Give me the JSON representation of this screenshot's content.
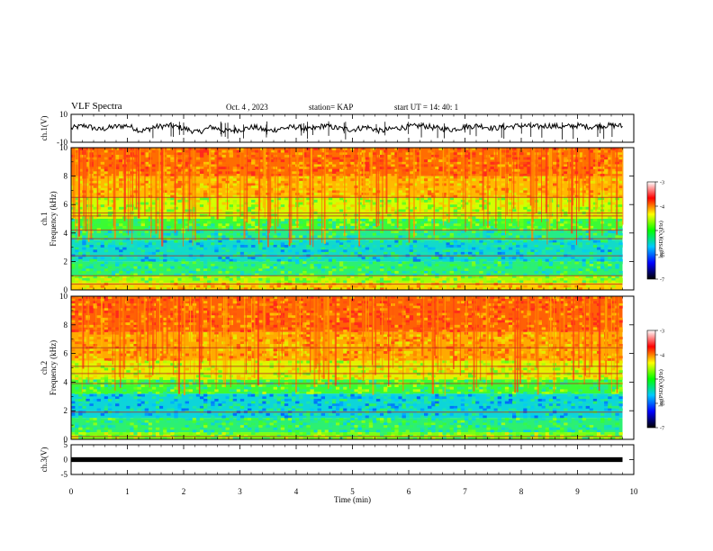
{
  "header": {
    "title": "VLF Spectra",
    "date": "Oct. 4 , 2023",
    "station": "station= KAP",
    "start": "start UT =  14: 40: 1"
  },
  "colors": {
    "spectrum_stops": [
      "#1a0a80",
      "#0050ff",
      "#00c8ff",
      "#20e8a0",
      "#40ff20",
      "#d8ff00",
      "#ffd000",
      "#ff7000",
      "#ff2020"
    ],
    "colorbar_stops": [
      "#000000",
      "#0000ff",
      "#00c8ff",
      "#00ff00",
      "#ffff00",
      "#ff0000",
      "#ffffff"
    ]
  },
  "chart_data": [
    {
      "type": "line",
      "name": "ch1-waveform",
      "ylabel": "ch.1(V)",
      "yticks": [
        "10",
        "-10"
      ],
      "ylim": [
        -10,
        10
      ],
      "x": [
        0,
        0.25,
        0.5,
        0.75,
        1,
        1.25,
        1.5,
        1.75,
        2,
        2.25,
        2.5,
        2.75,
        3,
        3.25,
        3.5,
        3.75,
        4,
        4.25,
        4.5,
        4.75,
        5,
        5.25,
        5.5,
        5.75,
        6,
        6.25,
        6.5,
        6.75,
        7,
        7.25,
        7.5,
        7.75,
        8,
        8.25,
        8.5,
        8.75,
        9,
        9.25,
        9.5,
        9.75,
        9.8
      ],
      "y": [
        0,
        2,
        -1,
        1,
        2,
        -2,
        1,
        2,
        0,
        -3,
        1,
        -2,
        -1,
        1,
        -2,
        0,
        1,
        -1,
        2,
        0,
        -1,
        1,
        -2,
        0,
        1,
        2,
        0,
        -1,
        1,
        2,
        0,
        1,
        2,
        1,
        2,
        1,
        2,
        1,
        2,
        2,
        1
      ]
    },
    {
      "type": "heatmap",
      "name": "ch1-spectrogram",
      "ylabel": "ch.1 Frequency (kHz)",
      "yticks": [
        "0",
        "2",
        "4",
        "6",
        "8",
        "10"
      ],
      "ylim": [
        0,
        10
      ],
      "colorbar": {
        "label": "log(PSD)(V²/Hz)",
        "ticks": [
          "-3",
          "-4",
          "-5",
          "-6",
          "-7"
        ],
        "range": [
          -7,
          -3
        ]
      },
      "band_levels": [
        {
          "f_from": 0.0,
          "f_to": 0.5,
          "level": 0.75
        },
        {
          "f_from": 0.5,
          "f_to": 1.0,
          "level": 0.58
        },
        {
          "f_from": 1.0,
          "f_to": 2.0,
          "level": 0.42
        },
        {
          "f_from": 2.0,
          "f_to": 3.5,
          "level": 0.32
        },
        {
          "f_from": 3.5,
          "f_to": 4.2,
          "level": 0.4
        },
        {
          "f_from": 4.2,
          "f_to": 5.0,
          "level": 0.48
        },
        {
          "f_from": 5.0,
          "f_to": 6.5,
          "level": 0.62
        },
        {
          "f_from": 6.5,
          "f_to": 8.0,
          "level": 0.78
        },
        {
          "f_from": 8.0,
          "f_to": 10.0,
          "level": 0.88
        }
      ],
      "lines_khz": [
        0.4,
        1.0,
        2.4,
        3.6,
        4.2,
        5.2,
        5.4,
        6.5
      ]
    },
    {
      "type": "heatmap",
      "name": "ch2-spectrogram",
      "ylabel": "ch.2 Frequency (kHz)",
      "yticks": [
        "0",
        "2",
        "4",
        "6",
        "8",
        "10"
      ],
      "ylim": [
        0,
        10
      ],
      "colorbar": {
        "label": "log(PSD)(V²/Hz)",
        "ticks": [
          "-3",
          "-4",
          "-5",
          "-6",
          "-7"
        ],
        "range": [
          -7,
          -3
        ]
      },
      "band_levels": [
        {
          "f_from": 0.0,
          "f_to": 0.5,
          "level": 0.55
        },
        {
          "f_from": 0.5,
          "f_to": 1.5,
          "level": 0.42
        },
        {
          "f_from": 1.5,
          "f_to": 3.2,
          "level": 0.3
        },
        {
          "f_from": 3.2,
          "f_to": 4.2,
          "level": 0.48
        },
        {
          "f_from": 4.2,
          "f_to": 5.5,
          "level": 0.66
        },
        {
          "f_from": 5.5,
          "f_to": 7.5,
          "level": 0.8
        },
        {
          "f_from": 7.5,
          "f_to": 10.0,
          "level": 0.9
        }
      ],
      "lines_khz": [
        0.2,
        1.9,
        3.9,
        4.6,
        5.1,
        6.4
      ]
    },
    {
      "type": "line",
      "name": "ch3-waveform",
      "ylabel": "ch.3(V)",
      "yticks": [
        "5",
        "0",
        "-5"
      ],
      "ylim": [
        -5,
        5
      ],
      "x": [
        0,
        9.8
      ],
      "y": [
        0,
        0
      ]
    }
  ],
  "time_axis": {
    "label": "Time (min)",
    "ticks": [
      "0",
      "1",
      "2",
      "3",
      "4",
      "5",
      "6",
      "7",
      "8",
      "9",
      "10"
    ],
    "xlim": [
      0,
      10
    ],
    "data_end": 9.8
  }
}
